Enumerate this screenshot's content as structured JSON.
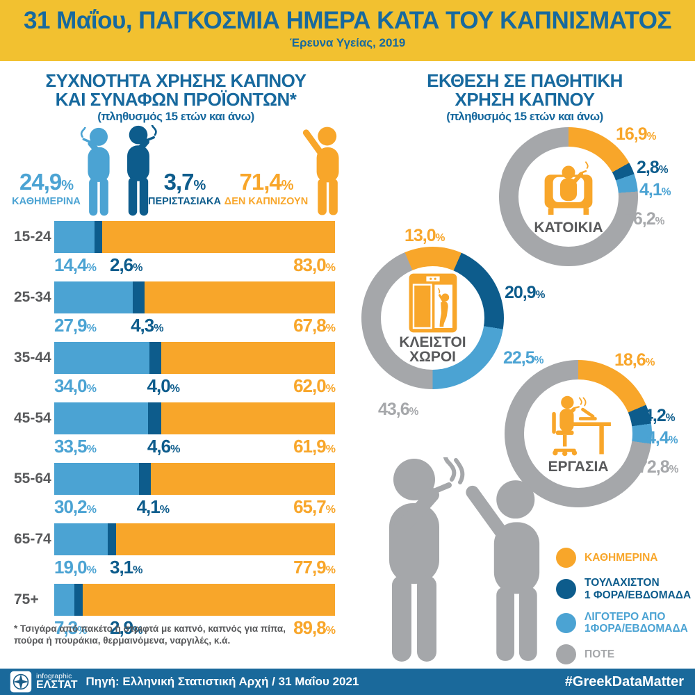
{
  "header": {
    "title": "31 Μαΐου, ΠΑΓΚΟΣΜΙΑ ΗΜΕΡΑ ΚΑΤΑ ΤΟΥ ΚΑΠΝΙΣΜΑΤΟΣ",
    "subtitle": "Έρευνα Υγείας, 2019"
  },
  "colors": {
    "banner_yellow": "#F2C130",
    "title_blue": "#17699E",
    "orange": "#F8A62A",
    "light_blue": "#4BA3D3",
    "dark_blue": "#0D5C8C",
    "gray": "#A5A7AA",
    "text_gray": "#58595B",
    "footer_blue": "#1A699B"
  },
  "left_section": {
    "title_line1": "ΣΥΧΝΟΤΗΤΑ ΧΡΗΣΗΣ ΚΑΠΝΟΥ",
    "title_line2": "ΚΑΙ ΣΥΝΑΦΩΝ ΠΡΟΪΟΝΤΩΝ*",
    "subtitle": "(πληθυσμός 15 ετών και άνω)",
    "summary": [
      {
        "value": "24,9",
        "label": "ΚΑΘΗΜΕΡΙΝΑ"
      },
      {
        "value": "3,7",
        "label": "ΠΕΡΙΣΤΑΣΙΑΚΑ"
      },
      {
        "value": "71,4",
        "label": "ΔΕΝ ΚΑΠΝΙΖΟΥΝ"
      }
    ],
    "footnote_line1": "* Τσιγάρα από πακέτο ή στριφτά με καπνό, καπνός για πίπα,",
    "footnote_line2": "πούρα ή πουράκια, θερμαινόμενα,  ναργιλές, κ.ά."
  },
  "right_section": {
    "title_line1": "ΕΚΘΕΣΗ ΣΕ ΠΑΘΗΤΙΚΗ",
    "title_line2": "ΧΡΗΣΗ ΚΑΠΝΟΥ",
    "subtitle": "(πληθυσμός 15 ετών και άνω)",
    "legend": [
      {
        "lines": [
          "ΚΑΘΗΜΕΡΙΝΑ"
        ],
        "color": "#F8A62A"
      },
      {
        "lines": [
          "ΤΟΥΛΑΧΙΣΤΟΝ",
          "1 ΦΟΡΑ/ΕΒΔΟΜΑΔΑ"
        ],
        "color": "#0D5C8C"
      },
      {
        "lines": [
          "ΛΙΓΟΤΕΡΟ ΑΠΟ",
          "1ΦΟΡΑ/ΕΒΔΟΜΑΔΑ"
        ],
        "color": "#4BA3D3"
      },
      {
        "lines": [
          "ΠΟΤΕ"
        ],
        "color": "#A5A7AA"
      }
    ]
  },
  "chart_data": [
    {
      "type": "bar",
      "stacked": true,
      "unit": "%",
      "title": "ΣΥΧΝΟΤΗΤΑ ΧΡΗΣΗΣ ΚΑΠΝΟΥ ΚΑΙ ΣΥΝΑΦΩΝ ΠΡΟΪΟΝΤΩΝ* (πληθυσμός 15 ετών και άνω)",
      "categories": [
        "15-24",
        "25-34",
        "35-44",
        "45-54",
        "55-64",
        "65-74",
        "75+"
      ],
      "series": [
        {
          "name": "ΚΑΘΗΜΕΡΙΝΑ",
          "color": "#4BA3D3",
          "values": [
            14.4,
            27.9,
            34.0,
            33.5,
            30.2,
            19.0,
            7.3
          ],
          "labels": [
            "14,4",
            "27,9",
            "34,0",
            "33,5",
            "30,2",
            "19,0",
            "7,3"
          ]
        },
        {
          "name": "ΠΕΡΙΣΤΑΣΙΑΚΑ",
          "color": "#0D5C8C",
          "values": [
            2.6,
            4.3,
            4.0,
            4.6,
            4.1,
            3.1,
            2.9
          ],
          "labels": [
            "2,6",
            "4,3",
            "4,0",
            "4,6",
            "4,1",
            "3,1",
            "2,9"
          ]
        },
        {
          "name": "ΔΕΝ ΚΑΠΝΙΖΟΥΝ",
          "color": "#F8A62A",
          "values": [
            83.0,
            67.8,
            62.0,
            61.9,
            65.7,
            77.9,
            89.8
          ],
          "labels": [
            "83,0",
            "67,8",
            "62,0",
            "61,9",
            "65,7",
            "77,9",
            "89,8"
          ]
        }
      ],
      "xlim": [
        0,
        100
      ],
      "grid": false
    },
    {
      "type": "pie",
      "variant": "donut",
      "title": "ΚΑΤΟΙΚΙΑ",
      "start_angle": 0,
      "unit": "%",
      "slices": [
        {
          "name": "ΚΑΘΗΜΕΡΙΝΑ",
          "value": 16.9,
          "label": "16,9",
          "color": "#F8A62A"
        },
        {
          "name": "ΤΟΥΛΑΧΙΣΤΟΝ 1 ΦΟΡΑ/ΕΒΔΟΜΑΔΑ",
          "value": 2.8,
          "label": "2,8",
          "color": "#0D5C8C"
        },
        {
          "name": "ΛΙΓΟΤΕΡΟ ΑΠΟ 1ΦΟΡΑ/ΕΒΔΟΜΑΔΑ",
          "value": 4.1,
          "label": "4,1",
          "color": "#4BA3D3"
        },
        {
          "name": "ΠΟΤΕ",
          "value": 76.2,
          "label": "76,2",
          "color": "#A5A7AA"
        }
      ]
    },
    {
      "type": "pie",
      "variant": "donut",
      "title": "ΚΛΕΙΣΤΟΙ ΧΩΡΟΙ",
      "start_angle": -23,
      "unit": "%",
      "slices": [
        {
          "name": "ΚΑΘΗΜΕΡΙΝΑ",
          "value": 13.0,
          "label": "13,0",
          "color": "#F8A62A"
        },
        {
          "name": "ΤΟΥΛΑΧΙΣΤΟΝ 1 ΦΟΡΑ/ΕΒΔΟΜΑΔΑ",
          "value": 20.9,
          "label": "20,9",
          "color": "#0D5C8C"
        },
        {
          "name": "ΛΙΓΟΤΕΡΟ ΑΠΟ 1ΦΟΡΑ/ΕΒΔΟΜΑΔΑ",
          "value": 22.5,
          "label": "22,5",
          "color": "#4BA3D3"
        },
        {
          "name": "ΠΟΤΕ",
          "value": 43.6,
          "label": "43,6",
          "color": "#A5A7AA"
        }
      ]
    },
    {
      "type": "pie",
      "variant": "donut",
      "title": "ΕΡΓΑΣΙΑ",
      "start_angle": 0,
      "unit": "%",
      "slices": [
        {
          "name": "ΚΑΘΗΜΕΡΙΝΑ",
          "value": 18.6,
          "label": "18,6",
          "color": "#F8A62A"
        },
        {
          "name": "ΤΟΥΛΑΧΙΣΤΟΝ 1 ΦΟΡΑ/ΕΒΔΟΜΑΔΑ",
          "value": 4.2,
          "label": "4,2",
          "color": "#0D5C8C"
        },
        {
          "name": "ΛΙΓΟΤΕΡΟ ΑΠΟ 1ΦΟΡΑ/ΕΒΔΟΜΑΔΑ",
          "value": 4.4,
          "label": "4,4",
          "color": "#4BA3D3"
        },
        {
          "name": "ΠΟΤΕ",
          "value": 72.8,
          "label": "72,8",
          "color": "#A5A7AA"
        }
      ]
    }
  ],
  "footer": {
    "logo_top": "infographic",
    "logo_bottom": "ΕΛΣΤΑΤ",
    "source": "Πηγή: Ελληνική Στατιστική Αρχή  / 31 Μαΐου 2021",
    "hashtag": "#GreekDataMatter"
  }
}
